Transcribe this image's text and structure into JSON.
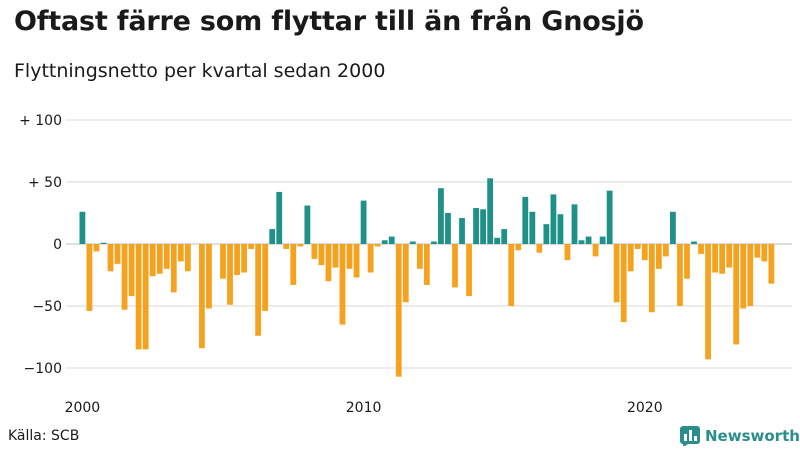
{
  "header": {
    "title": "Oftast färre som flyttar till än från Gnosjö",
    "subtitle": "Flyttningsnetto per kvartal sedan 2000"
  },
  "footer": {
    "source": "Källa: SCB",
    "brand": "Newsworthy"
  },
  "icons": {
    "brand": "newsworthy-logo-icon"
  },
  "colors": {
    "positive": "#1f9188",
    "negative": "#f5a31e",
    "grid": "#d9d9d9",
    "brand": "#2a8e8a"
  },
  "chart_data": {
    "type": "bar",
    "title": "Oftast färre som flyttar till än från Gnosjö",
    "subtitle": "Flyttningsnetto per kvartal sedan 2000",
    "xlabel": "",
    "ylabel": "",
    "x_start": "2000 Q1",
    "ylim": [
      -110,
      105
    ],
    "y_ticks": [
      {
        "value": 100,
        "label": "+ 100"
      },
      {
        "value": 50,
        "label": "+  50"
      },
      {
        "value": 0,
        "label": "0"
      },
      {
        "value": -50,
        "label": "−50"
      },
      {
        "value": -100,
        "label": "−100"
      }
    ],
    "x_ticks": [
      {
        "index": 0,
        "label": "2000"
      },
      {
        "index": 40,
        "label": "2010"
      },
      {
        "index": 80,
        "label": "2020"
      }
    ],
    "values": [
      26,
      -54,
      -6,
      1,
      -22,
      -16,
      -53,
      -42,
      -85,
      -85,
      -26,
      -24,
      -20,
      -39,
      -14,
      -22,
      0,
      -84,
      -52,
      0,
      -28,
      -49,
      -25,
      -23,
      -4,
      -74,
      -54,
      12,
      42,
      -4,
      -33,
      -2,
      31,
      -12,
      -17,
      -30,
      -19,
      -65,
      -20,
      -27,
      35,
      -23,
      -2,
      3,
      6,
      -107,
      -47,
      2,
      -20,
      -33,
      2,
      45,
      25,
      -35,
      21,
      -42,
      29,
      28,
      53,
      5,
      12,
      -50,
      -5,
      38,
      26,
      -7,
      16,
      40,
      24,
      -13,
      32,
      3,
      6,
      -10,
      6,
      43,
      -47,
      -63,
      -22,
      -4,
      -13,
      -55,
      -20,
      -10,
      26,
      -50,
      -28,
      2,
      -8,
      -93,
      -23,
      -24,
      -19,
      -81,
      -52,
      -50,
      -11,
      -14,
      -32
    ]
  }
}
